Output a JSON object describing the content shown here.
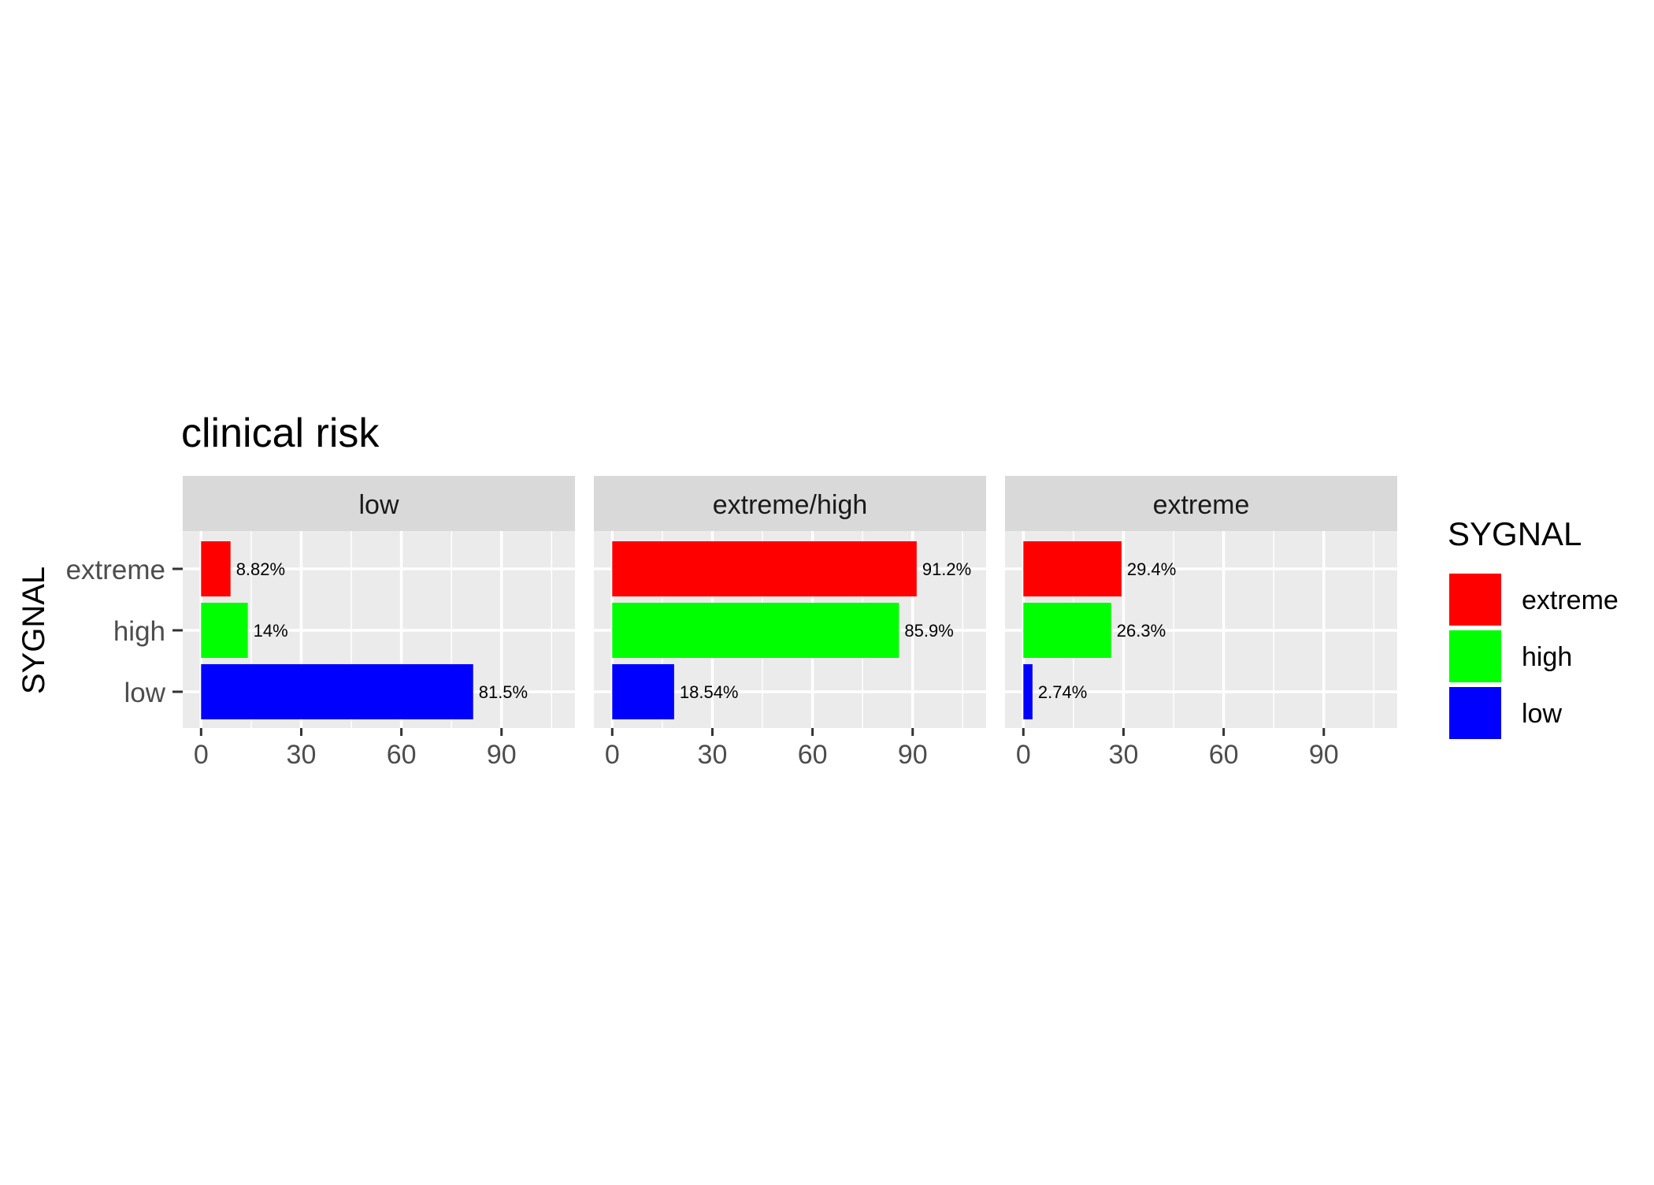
{
  "chart_data": {
    "type": "bar",
    "orientation": "horizontal",
    "title": "clinical risk",
    "ylabel": "SYGNAL",
    "xlabel": "",
    "categories": [
      "extreme",
      "high",
      "low"
    ],
    "xlim": [
      -5.5,
      112
    ],
    "xticks": [
      0,
      30,
      60,
      90
    ],
    "xtick_labels": [
      "0",
      "30",
      "60",
      "90"
    ],
    "legend": {
      "title": "SYGNAL",
      "placement": "right",
      "items": [
        {
          "label": "extreme",
          "color": "#FF0000"
        },
        {
          "label": "high",
          "color": "#00FF00"
        },
        {
          "label": "low",
          "color": "#0000FF"
        }
      ]
    },
    "colors": {
      "extreme": "#FF0000",
      "high": "#00FF00",
      "low": "#0000FF",
      "panel_bg": "#EBEBEB",
      "strip_bg": "#D9D9D9",
      "grid": "#FFFFFF",
      "tick_text": "#4D4D4D"
    },
    "facets": [
      {
        "strip": "low",
        "bars": [
          {
            "category": "extreme",
            "value": 8.82,
            "label": "8.82%"
          },
          {
            "category": "high",
            "value": 14,
            "label": "14%"
          },
          {
            "category": "low",
            "value": 81.5,
            "label": "81.5%"
          }
        ]
      },
      {
        "strip": "extreme/high",
        "bars": [
          {
            "category": "extreme",
            "value": 91.2,
            "label": "91.2%"
          },
          {
            "category": "high",
            "value": 85.9,
            "label": "85.9%"
          },
          {
            "category": "low",
            "value": 18.54,
            "label": "18.54%"
          }
        ]
      },
      {
        "strip": "extreme",
        "bars": [
          {
            "category": "extreme",
            "value": 29.4,
            "label": "29.4%"
          },
          {
            "category": "high",
            "value": 26.3,
            "label": "26.3%"
          },
          {
            "category": "low",
            "value": 2.74,
            "label": "2.74%"
          }
        ]
      }
    ]
  }
}
